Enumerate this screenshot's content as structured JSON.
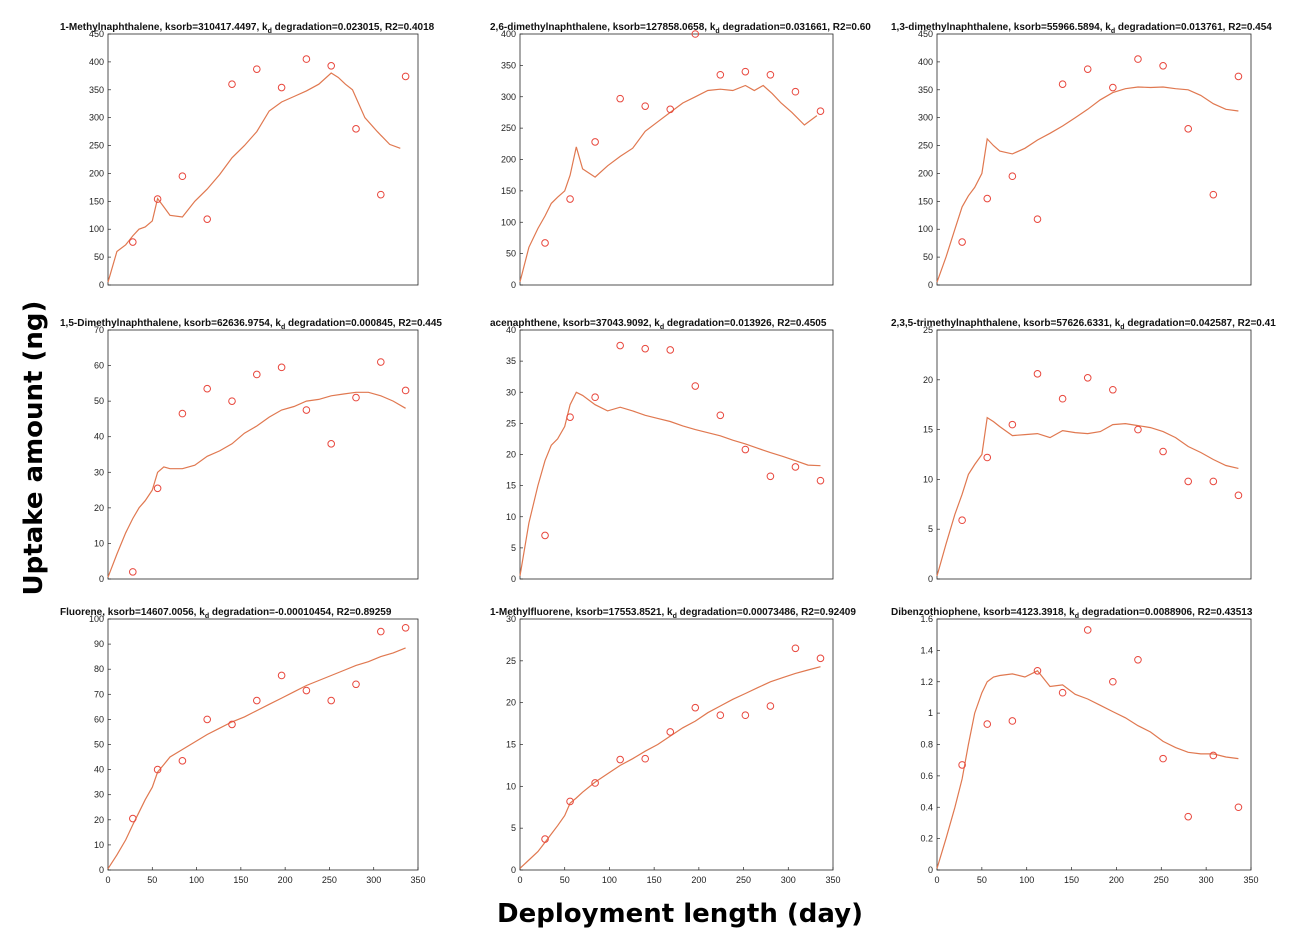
{
  "figure": {
    "ylabel": "Uptake amount (ng)",
    "xlabel": "Deployment length (day)"
  },
  "chart_data": [
    {
      "type": "scatter",
      "title": "1-Methylnaphthalene, ksorb=310417.4497, k",
      "title_sub": "d",
      "title_tail": " degradation=0.023015, R2=0.4018",
      "xlim": [
        0,
        350
      ],
      "ylim": [
        0,
        450
      ],
      "yticks": [
        "0",
        "50",
        "100",
        "150",
        "200",
        "250",
        "300",
        "350",
        "400",
        "450"
      ],
      "xticks": [],
      "colors": {
        "points": "#e8473d",
        "fit": "#e07850"
      },
      "points": {
        "x": [
          28,
          56,
          84,
          112,
          140,
          168,
          196,
          224,
          252,
          280,
          308,
          336
        ],
        "y": [
          77,
          154,
          195,
          118,
          360,
          387,
          354,
          405,
          393,
          280,
          162,
          374
        ]
      },
      "fit": {
        "x": [
          0,
          10,
          20,
          28,
          35,
          42,
          50,
          56,
          63,
          70,
          84,
          98,
          112,
          126,
          140,
          154,
          168,
          182,
          196,
          210,
          224,
          238,
          252,
          260,
          268,
          276,
          290,
          304,
          318,
          330
        ],
        "y": [
          5,
          60,
          72,
          88,
          100,
          104,
          115,
          155,
          140,
          125,
          122,
          150,
          172,
          198,
          228,
          250,
          275,
          312,
          328,
          338,
          348,
          360,
          380,
          372,
          360,
          350,
          300,
          275,
          252,
          245
        ]
      }
    },
    {
      "type": "scatter",
      "title": "2,6-dimethylnaphthalene, ksorb=127858.0658, k",
      "title_sub": "d",
      "title_tail": " degradation=0.031661, R2=0.60",
      "xlim": [
        0,
        350
      ],
      "ylim": [
        0,
        400
      ],
      "yticks": [
        "0",
        "50",
        "100",
        "150",
        "200",
        "250",
        "300",
        "350",
        "400"
      ],
      "xticks": [],
      "colors": {
        "points": "#e8473d",
        "fit": "#e07850"
      },
      "points": {
        "x": [
          28,
          56,
          84,
          112,
          140,
          168,
          196,
          224,
          252,
          280,
          308,
          336
        ],
        "y": [
          67,
          137,
          228,
          297,
          285,
          280,
          400,
          335,
          340,
          335,
          308,
          277
        ]
      },
      "fit": {
        "x": [
          0,
          10,
          20,
          28,
          35,
          42,
          50,
          56,
          63,
          70,
          84,
          98,
          112,
          126,
          140,
          154,
          168,
          182,
          196,
          210,
          224,
          238,
          252,
          262,
          272,
          282,
          292,
          304,
          318,
          332
        ],
        "y": [
          5,
          60,
          90,
          110,
          130,
          140,
          150,
          175,
          220,
          185,
          172,
          190,
          205,
          218,
          245,
          260,
          275,
          290,
          300,
          310,
          312,
          310,
          318,
          310,
          318,
          305,
          290,
          275,
          255,
          270
        ]
      }
    },
    {
      "type": "scatter",
      "title": "1,3-dimethylnaphthalene, ksorb=55966.5894, k",
      "title_sub": "d",
      "title_tail": " degradation=0.013761, R2=0.454",
      "xlim": [
        0,
        350
      ],
      "ylim": [
        0,
        450
      ],
      "yticks": [
        "0",
        "50",
        "100",
        "150",
        "200",
        "250",
        "300",
        "350",
        "400",
        "450"
      ],
      "xticks": [],
      "colors": {
        "points": "#e8473d",
        "fit": "#e07850"
      },
      "points": {
        "x": [
          28,
          56,
          84,
          112,
          140,
          168,
          196,
          224,
          252,
          280,
          308,
          336
        ],
        "y": [
          77,
          155,
          195,
          118,
          360,
          387,
          354,
          405,
          393,
          280,
          162,
          374
        ]
      },
      "fit": {
        "x": [
          0,
          10,
          20,
          28,
          35,
          42,
          50,
          56,
          63,
          70,
          84,
          98,
          112,
          126,
          140,
          154,
          168,
          182,
          196,
          210,
          224,
          238,
          252,
          266,
          280,
          294,
          308,
          322,
          336
        ],
        "y": [
          5,
          50,
          100,
          140,
          160,
          175,
          200,
          262,
          250,
          240,
          235,
          245,
          260,
          272,
          285,
          300,
          315,
          332,
          345,
          352,
          355,
          354,
          355,
          352,
          350,
          340,
          325,
          315,
          312
        ]
      }
    },
    {
      "type": "scatter",
      "title": "1,5-Dimethylnaphthalene, ksorb=62636.9754, k",
      "title_sub": "d",
      "title_tail": " degradation=0.000845, R2=0.445",
      "xlim": [
        0,
        350
      ],
      "ylim": [
        0,
        70
      ],
      "yticks": [
        "0",
        "10",
        "20",
        "30",
        "40",
        "50",
        "60",
        "70"
      ],
      "xticks": [],
      "colors": {
        "points": "#e8473d",
        "fit": "#e07850"
      },
      "points": {
        "x": [
          28,
          56,
          84,
          112,
          140,
          168,
          196,
          224,
          252,
          280,
          308,
          336
        ],
        "y": [
          2,
          25.5,
          46.5,
          53.5,
          50,
          57.5,
          59.5,
          47.5,
          38,
          51,
          61,
          53
        ]
      },
      "fit": {
        "x": [
          0,
          10,
          20,
          28,
          35,
          42,
          50,
          56,
          63,
          70,
          84,
          98,
          112,
          126,
          140,
          154,
          168,
          182,
          196,
          210,
          224,
          238,
          252,
          266,
          280,
          294,
          308,
          322,
          336
        ],
        "y": [
          0.5,
          7,
          13,
          17,
          20,
          22,
          25,
          30,
          31.5,
          31,
          31,
          32,
          34.5,
          36,
          38,
          41,
          43,
          45.5,
          47.5,
          48.5,
          50,
          50.5,
          51.5,
          52,
          52.5,
          52.5,
          51.5,
          50,
          48
        ]
      }
    },
    {
      "type": "scatter",
      "title": "acenaphthene, ksorb=37043.9092, k",
      "title_sub": "d",
      "title_tail": " degradation=0.013926, R2=0.4505",
      "xlim": [
        0,
        350
      ],
      "ylim": [
        0,
        40
      ],
      "yticks": [
        "0",
        "5",
        "10",
        "15",
        "20",
        "25",
        "30",
        "35",
        "40"
      ],
      "xticks": [],
      "colors": {
        "points": "#e8473d",
        "fit": "#e07850"
      },
      "points": {
        "x": [
          28,
          56,
          84,
          112,
          140,
          168,
          196,
          224,
          252,
          280,
          308,
          336
        ],
        "y": [
          7,
          26,
          29.2,
          37.5,
          37,
          36.8,
          31,
          26.3,
          20.8,
          16.5,
          18,
          15.8
        ]
      },
      "fit": {
        "x": [
          0,
          10,
          20,
          28,
          35,
          42,
          50,
          56,
          63,
          70,
          84,
          98,
          112,
          126,
          140,
          154,
          168,
          182,
          196,
          210,
          224,
          238,
          252,
          266,
          280,
          294,
          308,
          322,
          336
        ],
        "y": [
          0.5,
          9,
          15,
          19,
          21.5,
          22.5,
          24.5,
          28,
          30,
          29.5,
          28,
          27,
          27.6,
          27,
          26.3,
          25.8,
          25.3,
          24.6,
          24,
          23.5,
          23,
          22.3,
          21.7,
          21,
          20.3,
          19.7,
          19,
          18.3,
          18.2
        ]
      }
    },
    {
      "type": "scatter",
      "title": "2,3,5-trimethylnaphthalene, ksorb=57626.6331, k",
      "title_sub": "d",
      "title_tail": " degradation=0.042587, R2=0.41",
      "xlim": [
        0,
        350
      ],
      "ylim": [
        0,
        25
      ],
      "yticks": [
        "0",
        "5",
        "10",
        "15",
        "20",
        "25"
      ],
      "xticks": [],
      "colors": {
        "points": "#e8473d",
        "fit": "#e07850"
      },
      "points": {
        "x": [
          28,
          56,
          84,
          112,
          140,
          168,
          196,
          224,
          252,
          280,
          308,
          336
        ],
        "y": [
          5.9,
          12.2,
          15.5,
          20.6,
          18.1,
          20.2,
          19,
          15,
          12.8,
          9.8,
          9.8,
          8.4
        ]
      },
      "fit": {
        "x": [
          0,
          10,
          20,
          28,
          35,
          42,
          50,
          56,
          63,
          70,
          84,
          98,
          112,
          126,
          140,
          154,
          168,
          182,
          196,
          210,
          224,
          238,
          252,
          266,
          280,
          294,
          308,
          322,
          336
        ],
        "y": [
          0.3,
          3.5,
          6.5,
          8.5,
          10.5,
          11.5,
          12.5,
          16.2,
          15.8,
          15.3,
          14.4,
          14.5,
          14.6,
          14.2,
          14.9,
          14.7,
          14.6,
          14.8,
          15.5,
          15.6,
          15.4,
          15.2,
          14.8,
          14.2,
          13.3,
          12.7,
          12,
          11.4,
          11.1
        ]
      }
    },
    {
      "type": "scatter",
      "title": "Fluorene, ksorb=14607.0056, k",
      "title_sub": "d",
      "title_tail": " degradation=-0.00010454, R2=0.89259",
      "xlim": [
        0,
        350
      ],
      "ylim": [
        0,
        100
      ],
      "yticks": [
        "0",
        "10",
        "20",
        "30",
        "40",
        "50",
        "60",
        "70",
        "80",
        "90",
        "100"
      ],
      "xticks": [
        "0",
        "50",
        "100",
        "150",
        "200",
        "250",
        "300",
        "350"
      ],
      "colors": {
        "points": "#e8473d",
        "fit": "#e07850"
      },
      "points": {
        "x": [
          28,
          56,
          84,
          112,
          140,
          168,
          196,
          224,
          252,
          280,
          308,
          336
        ],
        "y": [
          20.5,
          40,
          43.5,
          60,
          58,
          67.5,
          77.5,
          71.5,
          67.5,
          74,
          95,
          96.5
        ]
      },
      "fit": {
        "x": [
          0,
          10,
          20,
          28,
          35,
          42,
          50,
          56,
          63,
          70,
          84,
          98,
          112,
          126,
          140,
          154,
          168,
          182,
          196,
          210,
          224,
          238,
          252,
          266,
          280,
          294,
          308,
          322,
          336
        ],
        "y": [
          0.5,
          6,
          12,
          18,
          23,
          28,
          33,
          39,
          42,
          45,
          48,
          51,
          54,
          56.5,
          59,
          61,
          63.5,
          66,
          68.5,
          71,
          73.5,
          75.5,
          77.5,
          79.5,
          81.5,
          83,
          85,
          86.5,
          88.5
        ]
      }
    },
    {
      "type": "scatter",
      "title": "1-Methylfluorene, ksorb=17553.8521, k",
      "title_sub": "d",
      "title_tail": " degradation=0.00073486, R2=0.92409",
      "xlim": [
        0,
        350
      ],
      "ylim": [
        0,
        30
      ],
      "yticks": [
        "0",
        "5",
        "10",
        "15",
        "20",
        "25",
        "30"
      ],
      "xticks": [
        "0",
        "50",
        "100",
        "150",
        "200",
        "250",
        "300",
        "350"
      ],
      "colors": {
        "points": "#e8473d",
        "fit": "#e07850"
      },
      "points": {
        "x": [
          28,
          56,
          84,
          112,
          140,
          168,
          196,
          224,
          252,
          280,
          308,
          336
        ],
        "y": [
          3.7,
          8.2,
          10.4,
          13.2,
          13.3,
          16.5,
          19.4,
          18.5,
          18.5,
          19.6,
          26.5,
          25.3
        ]
      },
      "fit": {
        "x": [
          0,
          10,
          20,
          28,
          35,
          42,
          50,
          56,
          63,
          70,
          84,
          98,
          112,
          126,
          140,
          154,
          168,
          182,
          196,
          210,
          224,
          238,
          252,
          266,
          280,
          294,
          308,
          322,
          336
        ],
        "y": [
          0.2,
          1.2,
          2.2,
          3.3,
          4.3,
          5.3,
          6.5,
          8,
          8.6,
          9.3,
          10.5,
          11.5,
          12.5,
          13.3,
          14.2,
          15,
          16,
          17,
          17.8,
          18.8,
          19.6,
          20.4,
          21.1,
          21.8,
          22.5,
          23,
          23.5,
          23.9,
          24.3
        ]
      }
    },
    {
      "type": "scatter",
      "title": "Dibenzothiophene, ksorb=4123.3918, k",
      "title_sub": "d",
      "title_tail": " degradation=0.0088906, R2=0.43513",
      "xlim": [
        0,
        350
      ],
      "ylim": [
        0,
        1.6
      ],
      "yticks": [
        "0",
        "0.2",
        "0.4",
        "0.6",
        "0.8",
        "1",
        "1.2",
        "1.4",
        "1.6"
      ],
      "xticks": [
        "0",
        "50",
        "100",
        "150",
        "200",
        "250",
        "300",
        "350"
      ],
      "colors": {
        "points": "#e8473d",
        "fit": "#e07850"
      },
      "points": {
        "x": [
          28,
          56,
          84,
          112,
          140,
          168,
          196,
          224,
          252,
          280,
          308,
          336
        ],
        "y": [
          0.67,
          0.93,
          0.95,
          1.27,
          1.13,
          1.53,
          1.2,
          1.34,
          0.71,
          0.34,
          0.73,
          0.4
        ]
      },
      "fit": {
        "x": [
          0,
          10,
          20,
          28,
          35,
          42,
          50,
          56,
          63,
          70,
          84,
          98,
          112,
          126,
          140,
          154,
          168,
          182,
          196,
          210,
          224,
          238,
          252,
          266,
          280,
          294,
          308,
          322,
          336
        ],
        "y": [
          0.01,
          0.2,
          0.4,
          0.58,
          0.8,
          1,
          1.13,
          1.2,
          1.23,
          1.24,
          1.25,
          1.23,
          1.27,
          1.17,
          1.18,
          1.12,
          1.09,
          1.05,
          1.01,
          0.97,
          0.92,
          0.88,
          0.82,
          0.78,
          0.75,
          0.74,
          0.74,
          0.72,
          0.71
        ]
      }
    }
  ]
}
